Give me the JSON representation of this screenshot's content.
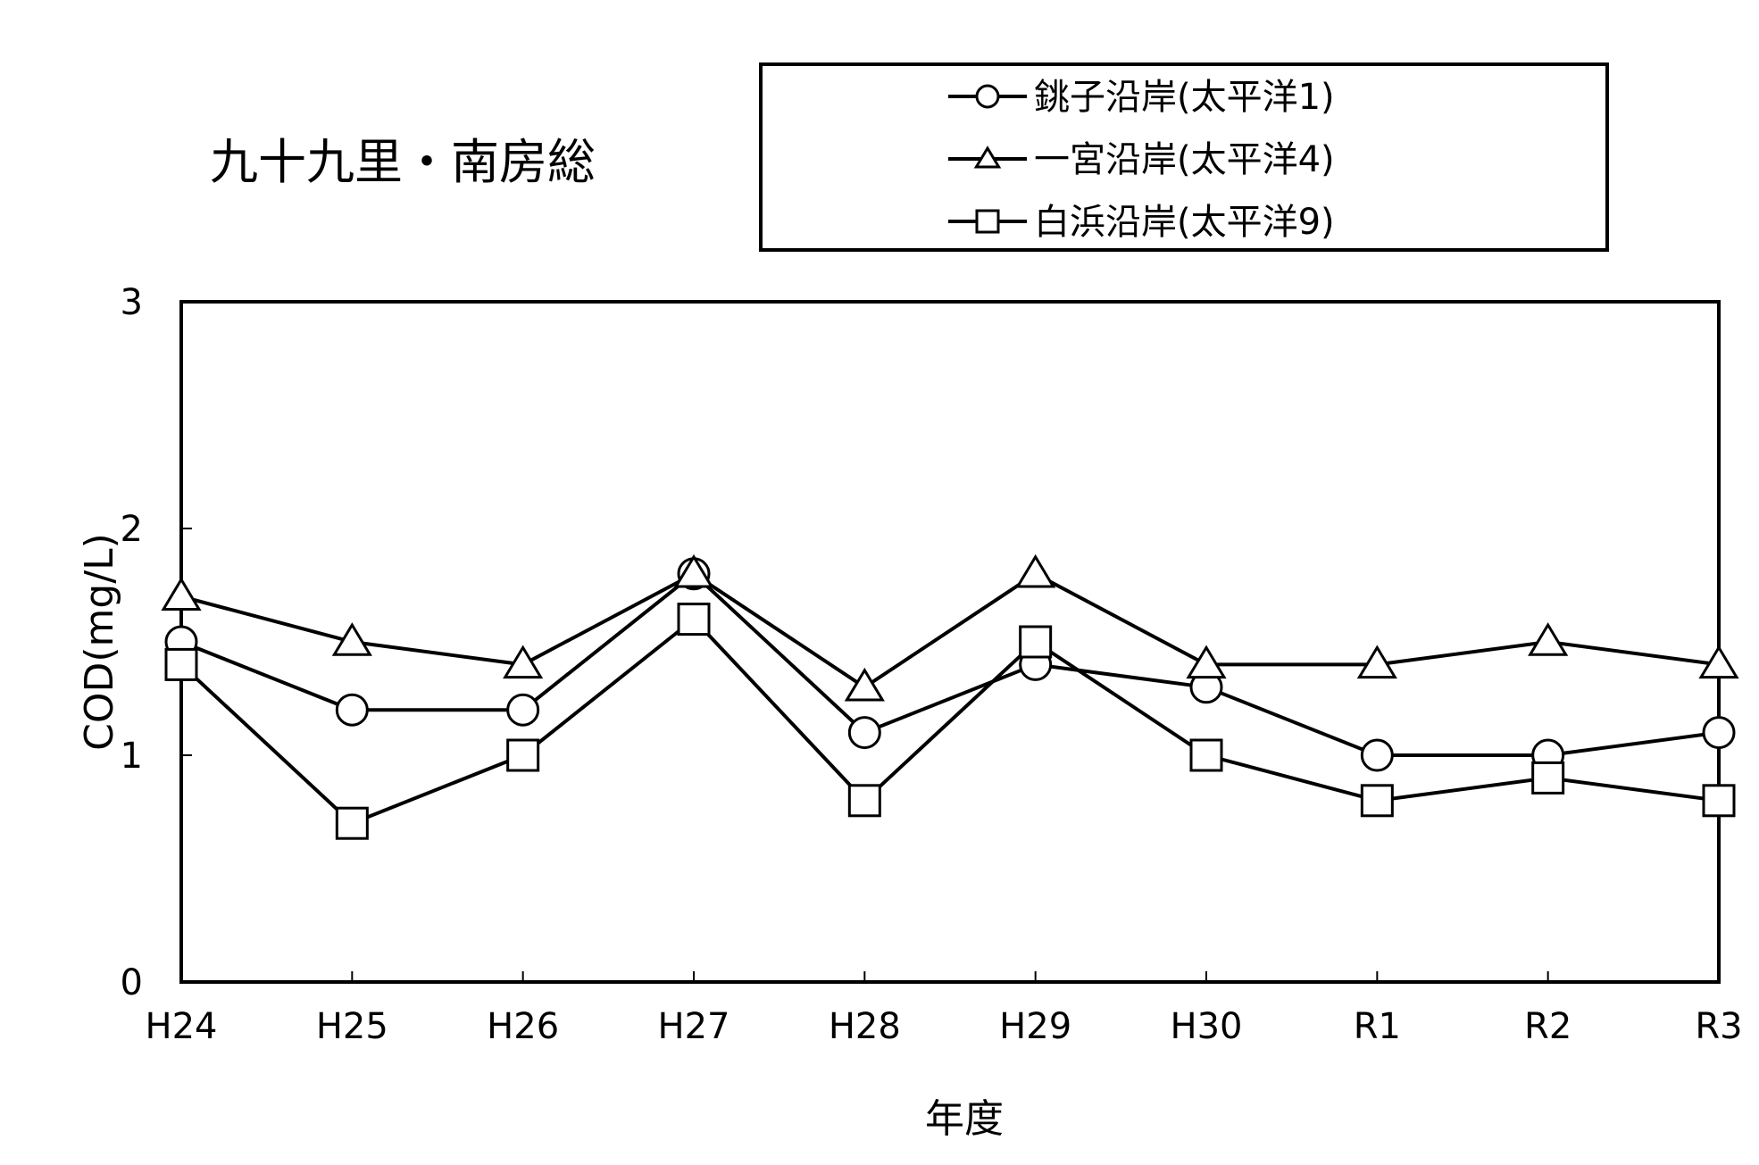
{
  "chart_data": {
    "type": "line",
    "title": "九十九里・南房総",
    "xlabel": "年度",
    "ylabel": "COD(mg/L)",
    "categories": [
      "H24",
      "H25",
      "H26",
      "H27",
      "H28",
      "H29",
      "H30",
      "R1",
      "R2",
      "R3"
    ],
    "ylim": [
      0,
      3
    ],
    "yticks": [
      "0",
      "1",
      "2",
      "3"
    ],
    "grid": false,
    "legend_position": "top-right",
    "series": [
      {
        "name": "銚子沿岸(太平洋1)",
        "marker": "circle",
        "values": [
          1.5,
          1.2,
          1.2,
          1.8,
          1.1,
          1.4,
          1.3,
          1.0,
          1.0,
          1.1
        ]
      },
      {
        "name": "一宮沿岸(太平洋4)",
        "marker": "triangle",
        "values": [
          1.7,
          1.5,
          1.4,
          1.8,
          1.3,
          1.8,
          1.4,
          1.4,
          1.5,
          1.4
        ]
      },
      {
        "name": "白浜沿岸(太平洋9)",
        "marker": "square",
        "values": [
          1.4,
          0.7,
          1.0,
          1.6,
          0.8,
          1.5,
          1.0,
          0.8,
          0.9,
          0.8
        ]
      }
    ]
  }
}
